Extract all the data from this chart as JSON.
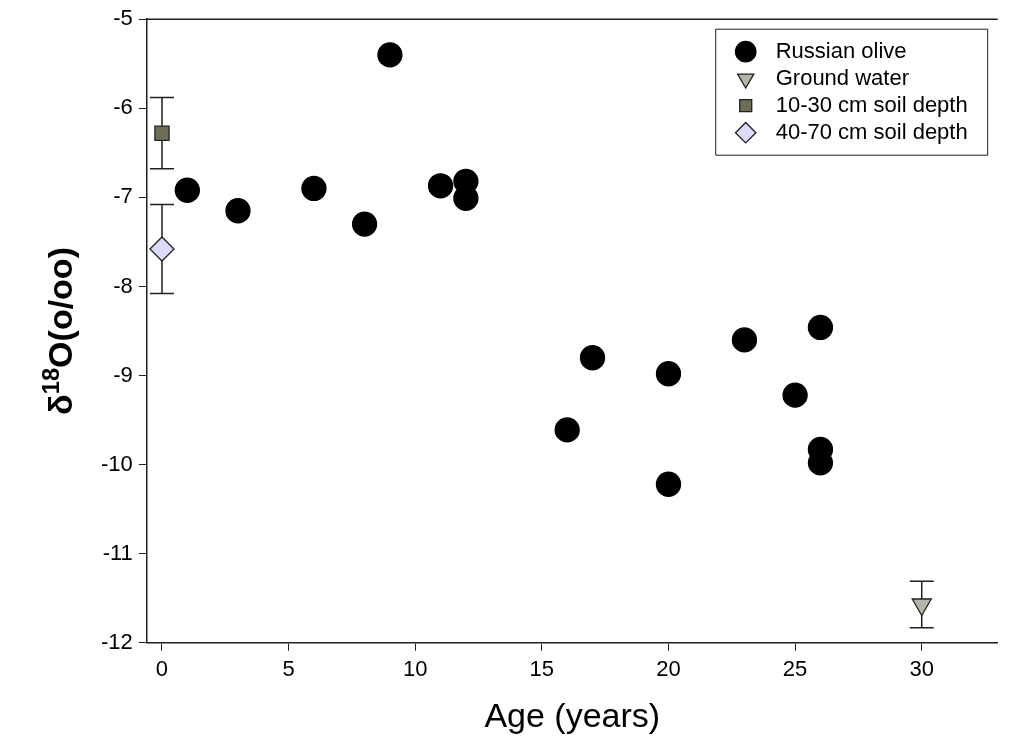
{
  "chart_data": {
    "type": "scatter",
    "xlabel": "Age (years)",
    "ylabel": "δ$^{18}$O(o/oo)",
    "xlim": [
      -0.6,
      33
    ],
    "xticks": [
      0,
      5,
      10,
      15,
      20,
      25,
      30
    ],
    "ylim": [
      -12,
      -5
    ],
    "yticks": [
      -12,
      -11,
      -10,
      -9,
      -8,
      -7,
      -6,
      -5
    ],
    "grid": false,
    "legend": "top right",
    "series": [
      {
        "name": "Russian olive",
        "color": "#000000",
        "marker": "circle",
        "x": [
          1,
          3,
          6,
          8,
          9,
          11,
          12,
          12,
          16,
          17,
          20,
          20,
          23,
          25,
          26,
          26,
          26
        ],
        "values": [
          -6.92,
          -7.15,
          -6.9,
          -7.3,
          -5.4,
          -6.87,
          -6.82,
          -7.01,
          -9.61,
          -8.8,
          -8.98,
          -10.22,
          -8.6,
          -9.22,
          -8.46,
          -9.83,
          -9.98
        ]
      },
      {
        "name": "Ground water",
        "color": "#b4b4a8",
        "marker": "triangle",
        "x": [
          30
        ],
        "values": [
          -11.57
        ],
        "errors": [
          0.26
        ]
      },
      {
        "name": "10-30 cm soil depth",
        "color": "#6e6e56",
        "marker": "square",
        "x": [
          0
        ],
        "values": [
          -6.28
        ],
        "errors": [
          0.4
        ]
      },
      {
        "name": "40-70 cm soil depth",
        "color": "#dcdcfa",
        "marker": "diamond",
        "x": [
          0
        ],
        "values": [
          -7.58
        ],
        "errors": [
          0.5
        ]
      }
    ]
  }
}
